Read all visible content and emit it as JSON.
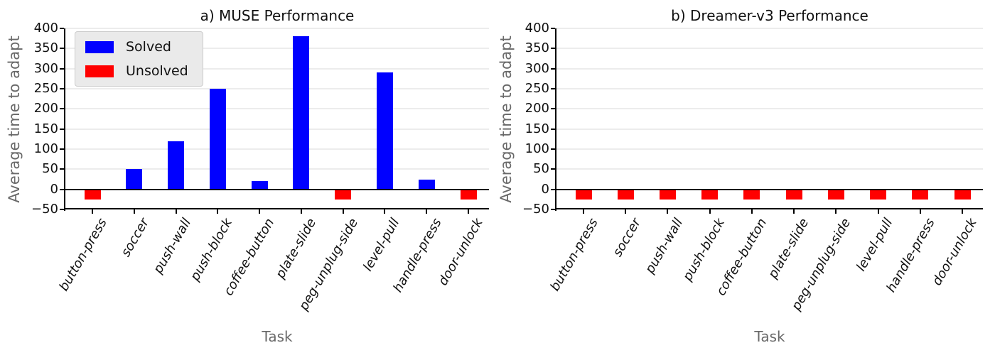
{
  "figure": {
    "background": "#ffffff"
  },
  "style": {
    "solved_color": "#0000ff",
    "unsolved_color": "#ff0000",
    "grid_color": "#ececec",
    "axis_color": "#000000",
    "tick_label_color": "#111111",
    "axis_label_color": "#696969",
    "legend_bg": "#eaeaea",
    "legend_border": "#cccccc"
  },
  "legend": {
    "items": [
      {
        "label": "Solved",
        "color": "#0000ff"
      },
      {
        "label": "Unsolved",
        "color": "#ff0000"
      }
    ]
  },
  "chart_data": [
    {
      "type": "bar",
      "title": "a) MUSE Performance",
      "xlabel": "Task",
      "ylabel": "Average time to adapt",
      "ylim": [
        -50,
        400
      ],
      "yticks": [
        400,
        350,
        300,
        250,
        200,
        150,
        100,
        50,
        0,
        -50
      ],
      "grid": true,
      "legend_position": "upper left",
      "categories": [
        "button-press",
        "soccer",
        "push-wall",
        "push-block",
        "coffee-button",
        "plate-slide",
        "peg-unplug-side",
        "level-pull",
        "handle-press",
        "door-unlock"
      ],
      "values": [
        -25,
        50,
        120,
        250,
        20,
        380,
        -25,
        290,
        25,
        -25
      ],
      "statuses": [
        "unsolved",
        "solved",
        "solved",
        "solved",
        "solved",
        "solved",
        "unsolved",
        "solved",
        "solved",
        "unsolved"
      ]
    },
    {
      "type": "bar",
      "title": "b) Dreamer-v3 Performance",
      "xlabel": "Task",
      "ylabel": "Average time to adapt",
      "ylim": [
        -50,
        400
      ],
      "yticks": [
        400,
        350,
        300,
        250,
        200,
        150,
        100,
        50,
        0,
        -50
      ],
      "grid": true,
      "legend_position": null,
      "categories": [
        "button-press",
        "soccer",
        "push-wall",
        "push-block",
        "coffee-button",
        "plate-slide",
        "peg-unplug-side",
        "level-pull",
        "handle-press",
        "door-unlock"
      ],
      "values": [
        -25,
        -25,
        -25,
        -25,
        -25,
        -25,
        -25,
        -25,
        -25,
        -25
      ],
      "statuses": [
        "unsolved",
        "unsolved",
        "unsolved",
        "unsolved",
        "unsolved",
        "unsolved",
        "unsolved",
        "unsolved",
        "unsolved",
        "unsolved"
      ]
    }
  ]
}
